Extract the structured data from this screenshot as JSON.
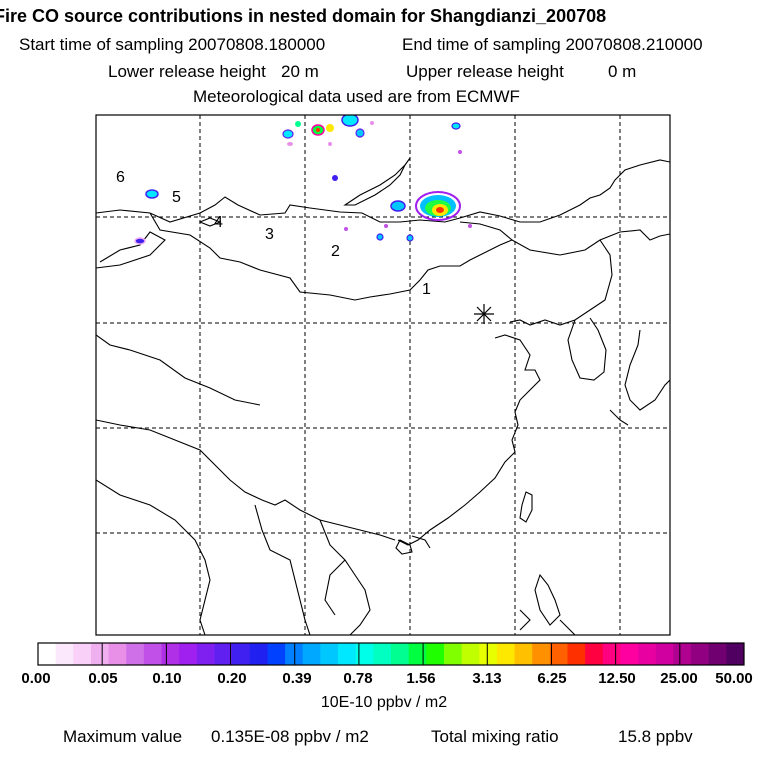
{
  "header": {
    "title": "Fire CO source contributions in nested domain for Shangdianzi_200708",
    "start_label": "Start time of sampling 20070808.180000",
    "end_label": "End time of sampling 20070808.210000",
    "lower_label": "Lower release height",
    "lower_value": "20 m",
    "upper_label": "Upper release height",
    "upper_value": "0 m",
    "met_line": "Meteorological data used are from ECMWF"
  },
  "map": {
    "cluster_labels": [
      "1",
      "2",
      "3",
      "4",
      "5",
      "6"
    ],
    "receptor_symbol": "asterisk"
  },
  "colorbar": {
    "tick_labels": [
      "0.00",
      "0.05",
      "0.10",
      "0.20",
      "0.39",
      "0.78",
      "1.56",
      "3.13",
      "6.25",
      "12.50",
      "25.00",
      "50.00"
    ],
    "colors": [
      "#ffffff",
      "#fce8fc",
      "#f8d0f8",
      "#f0b0f0",
      "#e890e8",
      "#d070e8",
      "#c050e8",
      "#b030e8",
      "#a020f0",
      "#8020f0",
      "#6020f0",
      "#4020f0",
      "#2020f0",
      "#0040ff",
      "#0080ff",
      "#00a8ff",
      "#00c8ff",
      "#00e8ff",
      "#00ffe8",
      "#00ffc0",
      "#00ff90",
      "#00ff40",
      "#20ff00",
      "#80ff00",
      "#c0ff00",
      "#e8ff00",
      "#ffe800",
      "#ffc000",
      "#ff9000",
      "#ff6000",
      "#ff3000",
      "#ff0040",
      "#ff0080",
      "#ff00a0",
      "#e800a0",
      "#d000a0",
      "#b00090",
      "#900080",
      "#700070",
      "#500060"
    ],
    "unit": "10E-10 ppbv / m2"
  },
  "footer": {
    "max_label": "Maximum value",
    "max_value": "0.135E-08 ppbv / m2",
    "total_label": "Total mixing ratio",
    "total_value": "15.8 ppbv"
  }
}
